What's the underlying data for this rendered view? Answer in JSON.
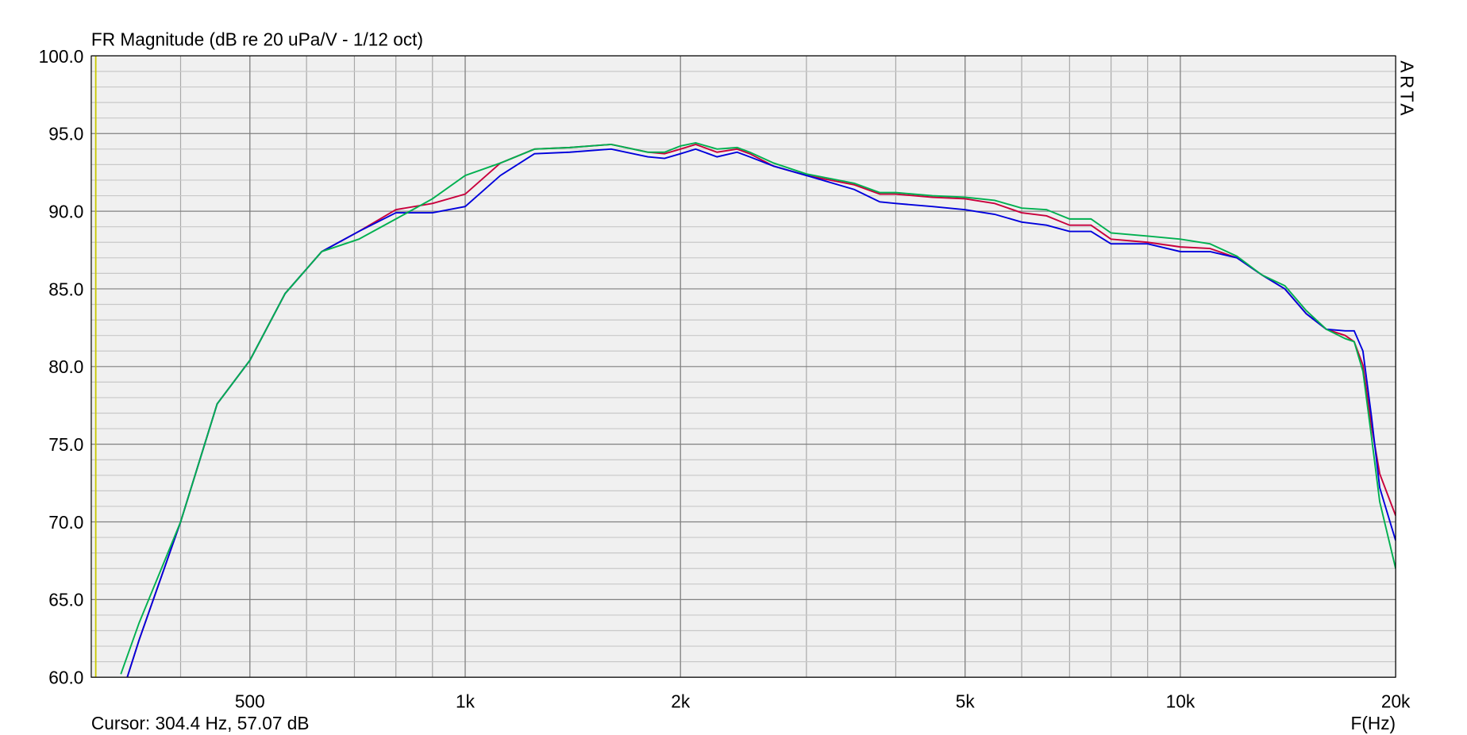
{
  "chart_data": {
    "type": "line",
    "title": "FR Magnitude (dB re 20 uPa/V - 1/12 oct)",
    "x_label": "F(Hz)",
    "watermark": "ARTA",
    "cursor": {
      "text": "Cursor: 304.4 Hz, 57.07 dB",
      "x": 304.4,
      "color": "#c8c800"
    },
    "log_x": true,
    "grid": true,
    "xlim": [
      300,
      20000
    ],
    "ylim": [
      60,
      100
    ],
    "xticks": [
      {
        "value": 500,
        "label": "500"
      },
      {
        "value": 1000,
        "label": "1k"
      },
      {
        "value": 2000,
        "label": "2k"
      },
      {
        "value": 5000,
        "label": "5k"
      },
      {
        "value": 10000,
        "label": "10k"
      },
      {
        "value": 20000,
        "label": "20k"
      }
    ],
    "yticks": [
      {
        "value": 60,
        "label": "60.0"
      },
      {
        "value": 65,
        "label": "65.0"
      },
      {
        "value": 70,
        "label": "70.0"
      },
      {
        "value": 75,
        "label": "75.0"
      },
      {
        "value": 80,
        "label": "80.0"
      },
      {
        "value": 85,
        "label": "85.0"
      },
      {
        "value": 90,
        "label": "90.0"
      },
      {
        "value": 95,
        "label": "95.0"
      },
      {
        "value": 100,
        "label": "100.0"
      }
    ],
    "x": [
      330,
      350,
      400,
      450,
      500,
      560,
      630,
      710,
      800,
      900,
      1000,
      1120,
      1250,
      1400,
      1600,
      1800,
      1900,
      2000,
      2100,
      2250,
      2400,
      2500,
      2700,
      3000,
      3500,
      3800,
      4000,
      4500,
      5000,
      5500,
      6000,
      6500,
      7000,
      7500,
      8000,
      9000,
      10000,
      11000,
      12000,
      13000,
      14000,
      15000,
      16000,
      17000,
      17500,
      18000,
      18500,
      19000,
      20000
    ],
    "series": [
      {
        "color": "#c8003c",
        "values": [
          58.7,
          62.4,
          70.0,
          77.6,
          80.4,
          84.7,
          87.4,
          88.7,
          90.1,
          90.5,
          91.1,
          93.1,
          94.0,
          94.1,
          94.3,
          93.8,
          93.7,
          94.0,
          94.3,
          93.8,
          94.0,
          93.7,
          92.9,
          92.3,
          91.7,
          91.1,
          91.1,
          90.9,
          90.8,
          90.5,
          89.9,
          89.7,
          89.1,
          89.1,
          88.2,
          88.0,
          87.7,
          87.6,
          87.0,
          85.9,
          85.0,
          83.4,
          82.4,
          82.0,
          81.6,
          80.1,
          76.2,
          73.1,
          70.4
        ]
      },
      {
        "color": "#0000dc",
        "values": [
          58.7,
          62.4,
          70.0,
          77.6,
          80.4,
          84.7,
          87.4,
          88.7,
          89.9,
          89.9,
          90.3,
          92.3,
          93.7,
          93.8,
          94.0,
          93.5,
          93.4,
          93.7,
          94.0,
          93.5,
          93.8,
          93.5,
          92.9,
          92.3,
          91.4,
          90.6,
          90.5,
          90.3,
          90.1,
          89.8,
          89.3,
          89.1,
          88.7,
          88.7,
          87.9,
          87.9,
          87.4,
          87.4,
          87.0,
          85.9,
          85.0,
          83.4,
          82.4,
          82.3,
          82.3,
          81.0,
          76.8,
          72.2,
          68.8
        ]
      },
      {
        "color": "#00b050",
        "values": [
          60.2,
          63.5,
          70.0,
          77.6,
          80.4,
          84.7,
          87.4,
          88.2,
          89.5,
          90.8,
          92.3,
          93.1,
          94.0,
          94.1,
          94.3,
          93.8,
          93.8,
          94.2,
          94.4,
          94.0,
          94.1,
          93.8,
          93.1,
          92.4,
          91.8,
          91.2,
          91.2,
          91.0,
          90.9,
          90.7,
          90.2,
          90.1,
          89.5,
          89.5,
          88.6,
          88.4,
          88.2,
          87.9,
          87.1,
          85.9,
          85.2,
          83.6,
          82.4,
          81.8,
          81.6,
          79.7,
          75.5,
          71.3,
          67.0
        ]
      }
    ]
  }
}
